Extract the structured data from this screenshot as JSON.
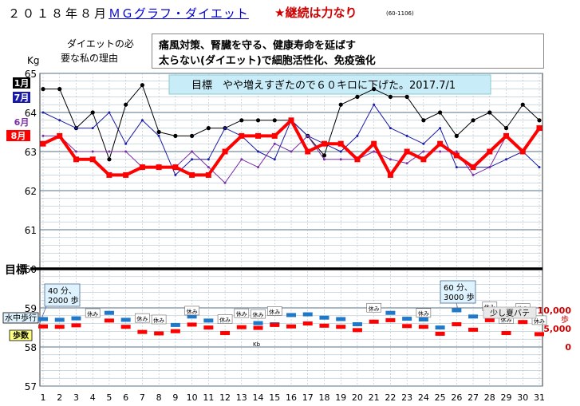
{
  "header": {
    "date": "２０１８年８月",
    "app_name": "ＭＧグラフ・ダイエット",
    "slogan": "★継続は力なり",
    "code": "(60-1106)"
  },
  "reason": {
    "label_line1": "ダイエットの必",
    "label_line2": "要な私の理由",
    "line1": "痛風対策、腎臓を守る、健康寿命を延ばす",
    "line2": "太らない(ダイエット)で細胞活性化、免疫強化"
  },
  "colors": {
    "jan": "#000000",
    "jul": "#1a1aa8",
    "jun": "#7a2ea8",
    "aug": "#ff0000",
    "grid": "#6a8aa0",
    "steps_walk": "#1f78c8",
    "steps_count": "#ff0000",
    "banner_bg": "#c8ecf8"
  },
  "chart_data": {
    "type": "line",
    "ylabel": "Kg",
    "ylim": [
      57,
      65
    ],
    "yticks": [
      57,
      58,
      59,
      60,
      61,
      62,
      63,
      64,
      65
    ],
    "goal_label": "目標",
    "goal_value": 60,
    "goal_note": "目標　やや増えすぎたので６０キロに下げた。2017.7/1",
    "x": [
      1,
      2,
      3,
      4,
      5,
      6,
      7,
      8,
      9,
      10,
      11,
      12,
      13,
      14,
      15,
      16,
      17,
      18,
      19,
      20,
      21,
      22,
      23,
      24,
      25,
      26,
      27,
      28,
      29,
      30,
      31
    ],
    "series": [
      {
        "name": "1月",
        "values": [
          64.6,
          64.6,
          63.6,
          64.0,
          62.8,
          64.2,
          64.7,
          63.5,
          63.4,
          63.4,
          63.6,
          63.6,
          63.8,
          63.8,
          63.8,
          63.8,
          63.4,
          62.9,
          64.2,
          64.4,
          64.6,
          64.4,
          64.4,
          63.8,
          64.0,
          63.4,
          63.8,
          64.0,
          63.6,
          64.2,
          63.8
        ]
      },
      {
        "name": "7月",
        "values": [
          64.0,
          63.8,
          63.6,
          63.6,
          64.0,
          63.2,
          63.8,
          63.4,
          62.4,
          62.8,
          62.8,
          63.6,
          63.4,
          63.0,
          62.8,
          63.8,
          63.4,
          63.2,
          63.0,
          63.4,
          64.2,
          63.6,
          63.4,
          63.2,
          63.6,
          62.6,
          62.6,
          62.6,
          62.8,
          63.0,
          62.6
        ]
      },
      {
        "name": "6月",
        "values": [
          63.4,
          63.4,
          63.0,
          63.0,
          63.0,
          63.0,
          62.6,
          62.6,
          62.6,
          63.0,
          62.6,
          62.2,
          62.8,
          62.6,
          63.2,
          63.0,
          63.4,
          62.8,
          62.8,
          62.8,
          63.0,
          62.8,
          62.7,
          63.0,
          63.0,
          63.0,
          62.4,
          62.6,
          63.4,
          63.0,
          63.6
        ]
      },
      {
        "name": "8月",
        "values": [
          63.2,
          63.4,
          62.8,
          62.8,
          62.4,
          62.4,
          62.6,
          62.6,
          62.6,
          62.4,
          62.4,
          63.0,
          63.4,
          63.4,
          63.4,
          63.8,
          63.0,
          63.2,
          63.2,
          62.8,
          63.2,
          62.4,
          63.0,
          62.8,
          63.2,
          62.9,
          62.6,
          63.0,
          63.4,
          63.0,
          63.6
        ]
      }
    ],
    "steps_axis": {
      "labels": [
        "10,000",
        "5,000",
        "0"
      ],
      "unit": "歩",
      "values": [
        10000,
        5000,
        0
      ]
    },
    "steps_series": [
      {
        "name": "水中歩行",
        "values": [
          7600,
          7400,
          7800,
          8800,
          9300,
          7400,
          null,
          null,
          6000,
          8300,
          7200,
          null,
          null,
          6500,
          6200,
          8700,
          8900,
          8000,
          7600,
          6200,
          null,
          9300,
          7700,
          7500,
          5300,
          10000,
          8300,
          8000,
          null,
          null,
          null
        ]
      },
      {
        "name": "歩数",
        "values": [
          5600,
          5500,
          5900,
          null,
          7200,
          5500,
          4100,
          3700,
          4300,
          6100,
          5300,
          3800,
          5400,
          5200,
          6000,
          5600,
          6400,
          5800,
          5500,
          4600,
          6900,
          7300,
          5700,
          5500,
          3600,
          6200,
          4700,
          7300,
          3800,
          6800,
          3500
        ]
      }
    ],
    "rest_days": [
      4,
      7,
      8,
      10,
      12,
      13,
      14,
      15,
      21,
      24,
      28,
      29,
      30,
      31
    ],
    "rest_label": "休み",
    "kb_day": 14,
    "kb_label": "Kb",
    "annotations": [
      {
        "text_line1": "40 分、",
        "text_line2": "2000 歩",
        "day": 1
      },
      {
        "text_line1": "60 分、",
        "text_line2": "3000 歩",
        "day": 26
      },
      {
        "text": "少し夏バテ",
        "day": 28
      }
    ]
  }
}
